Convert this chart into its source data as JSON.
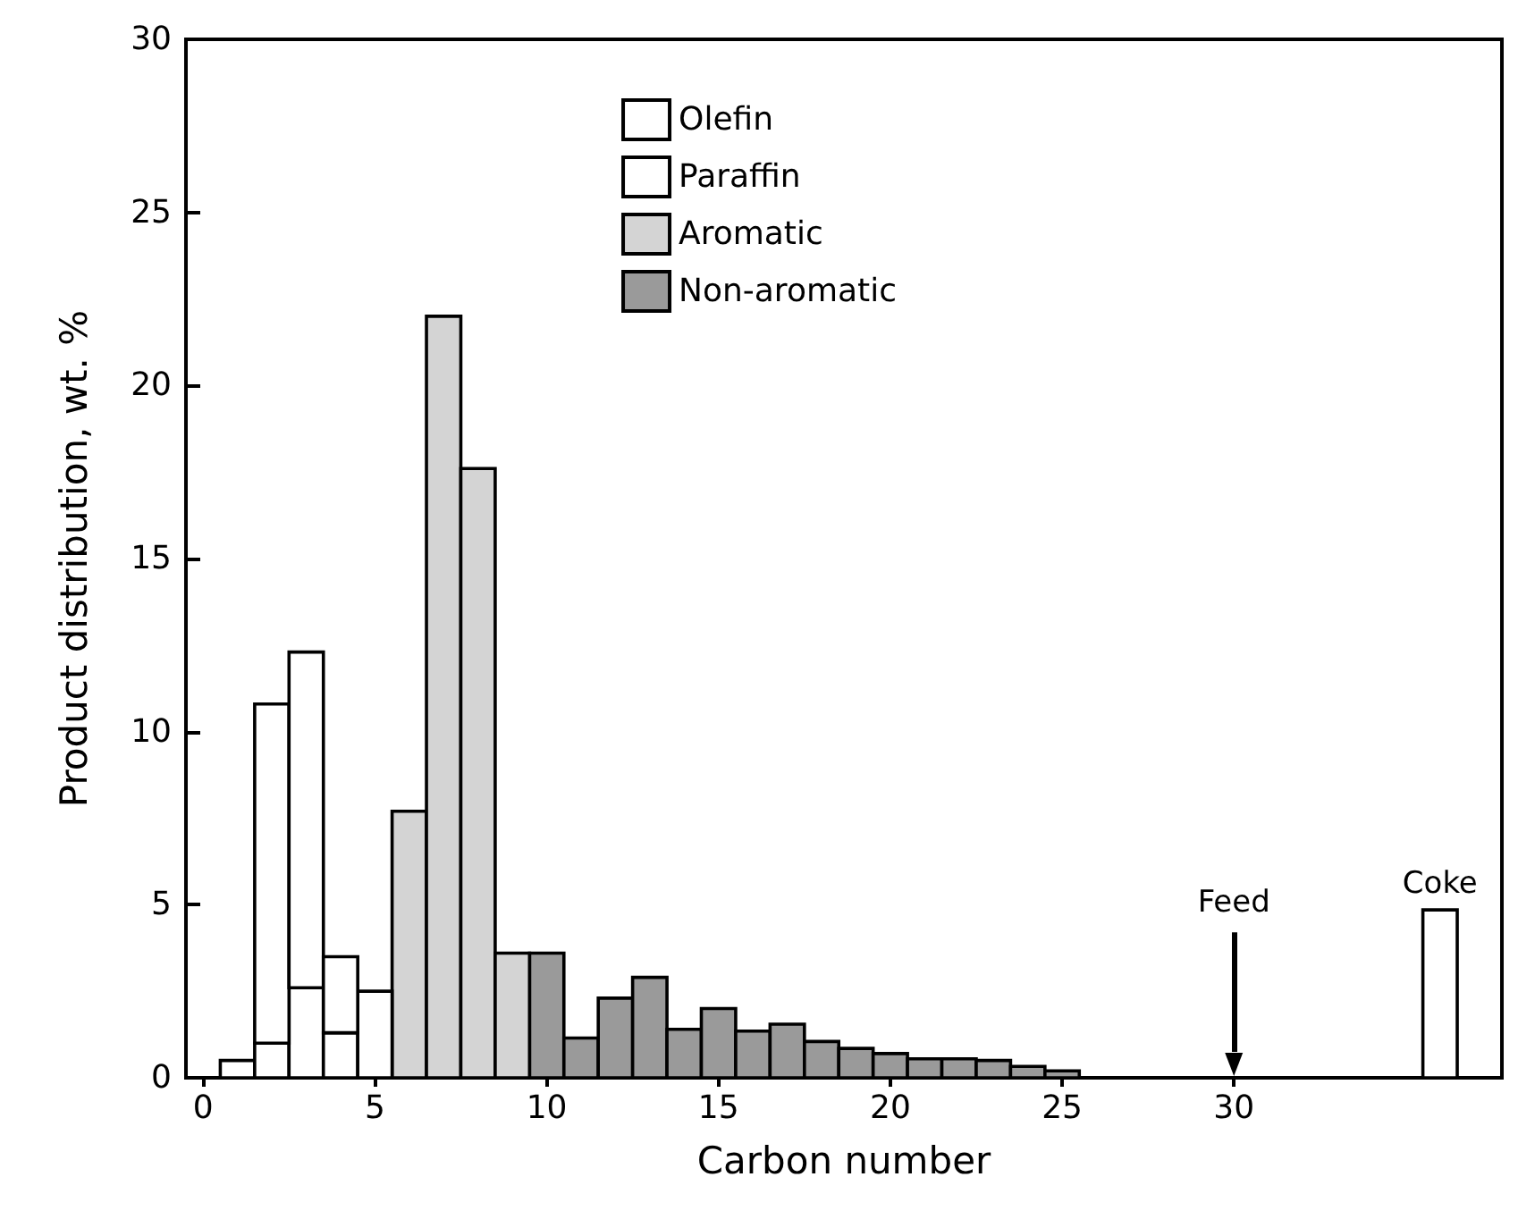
{
  "chart_data": {
    "type": "bar",
    "stacked": true,
    "xlabel": "Carbon number",
    "ylabel": "Product distribution, wt. %",
    "x": [
      1,
      2,
      3,
      4,
      5,
      6,
      7,
      8,
      9,
      10,
      11,
      12,
      13,
      14,
      15,
      16,
      17,
      18,
      19,
      20,
      21,
      22,
      23,
      24,
      25,
      36
    ],
    "series": [
      {
        "name": "Non-aromatic",
        "color": "#9a9a9a",
        "values": [
          null,
          null,
          null,
          null,
          null,
          null,
          null,
          null,
          null,
          3.6,
          1.15,
          2.3,
          2.9,
          1.4,
          2.0,
          1.35,
          1.55,
          1.05,
          0.85,
          0.7,
          0.55,
          0.55,
          0.5,
          0.33,
          0.2,
          null
        ]
      },
      {
        "name": "Aromatic",
        "color": "#d4d4d4",
        "values": [
          null,
          null,
          null,
          null,
          null,
          7.7,
          22.0,
          17.6,
          3.6,
          null,
          null,
          null,
          null,
          null,
          null,
          null,
          null,
          null,
          null,
          null,
          null,
          null,
          null,
          null,
          null,
          null
        ]
      },
      {
        "name": "Paraffin",
        "color": "#ffffff",
        "values": [
          0.5,
          1.0,
          2.6,
          1.3,
          2.5,
          null,
          null,
          null,
          null,
          null,
          null,
          null,
          null,
          null,
          null,
          null,
          null,
          null,
          null,
          null,
          null,
          null,
          null,
          null,
          null,
          null
        ]
      },
      {
        "name": "Olefin",
        "color": "#ffffff",
        "values": [
          null,
          9.8,
          9.7,
          2.2,
          null,
          null,
          null,
          null,
          null,
          null,
          null,
          null,
          null,
          null,
          null,
          null,
          null,
          null,
          null,
          null,
          null,
          null,
          null,
          null,
          null,
          null
        ]
      },
      {
        "name": "Coke",
        "color": "#ffffff",
        "values": [
          null,
          null,
          null,
          null,
          null,
          null,
          null,
          null,
          null,
          null,
          null,
          null,
          null,
          null,
          null,
          null,
          null,
          null,
          null,
          null,
          null,
          null,
          null,
          null,
          null,
          4.85
        ]
      }
    ],
    "ref_lines": [
      {
        "axis": "x",
        "value": 30,
        "label": "Feed",
        "color": "#000000"
      }
    ],
    "xlim": [
      -0.5,
      37.8
    ],
    "xticks": [
      0,
      5,
      10,
      15,
      20,
      25,
      30
    ],
    "ylim": [
      0,
      30
    ],
    "yticks": [
      0,
      5,
      10,
      15,
      20,
      25,
      30
    ],
    "legend": "top"
  }
}
